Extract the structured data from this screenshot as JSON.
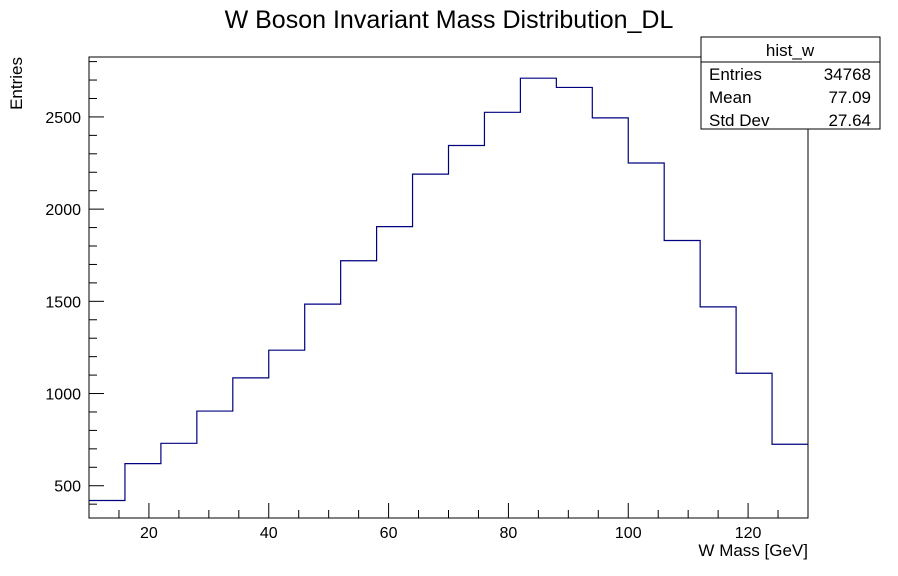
{
  "chart_data": {
    "type": "bar",
    "title": "W Boson Invariant Mass Distribution_DL",
    "xlabel": "W Mass [GeV]",
    "ylabel": "Entries",
    "xlim": [
      10,
      130
    ],
    "ylim": [
      325,
      2825
    ],
    "bin_edges": [
      10,
      16,
      22,
      28,
      34,
      40,
      46,
      52,
      58,
      64,
      70,
      76,
      82,
      88,
      94,
      100,
      106,
      112,
      118,
      124,
      130
    ],
    "values": [
      420,
      620,
      730,
      905,
      1085,
      1235,
      1485,
      1720,
      1905,
      2190,
      2345,
      2525,
      2710,
      2660,
      2495,
      2250,
      1830,
      1470,
      1110,
      725
    ],
    "x_ticks": [
      20,
      40,
      60,
      80,
      100,
      120
    ],
    "y_ticks": [
      500,
      1000,
      1500,
      2000,
      2500
    ],
    "grid": false,
    "line_color": "#000080",
    "stats_box": {
      "name": "hist_w",
      "rows": [
        {
          "label": "Entries",
          "value": "34768"
        },
        {
          "label": "Mean",
          "value": "77.09"
        },
        {
          "label": "Std Dev",
          "value": "27.64"
        }
      ]
    }
  }
}
